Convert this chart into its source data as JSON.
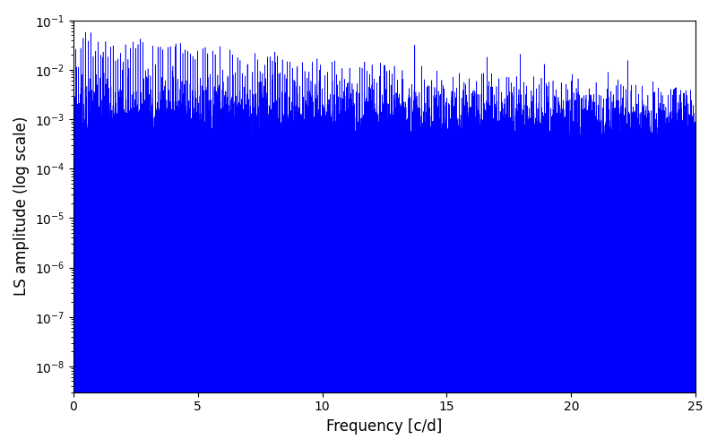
{
  "xlabel": "Frequency [c/d]",
  "ylabel": "LS amplitude (log scale)",
  "xlim": [
    0,
    25
  ],
  "ylim": [
    3e-09,
    0.1
  ],
  "line_color": "#0000ff",
  "linewidth": 0.4,
  "figsize": [
    8.0,
    5.0
  ],
  "dpi": 100,
  "background_color": "#ffffff",
  "xticks": [
    0,
    5,
    10,
    15,
    20,
    25
  ],
  "seed": 77,
  "n_points": 12000,
  "freq_max": 25.0
}
